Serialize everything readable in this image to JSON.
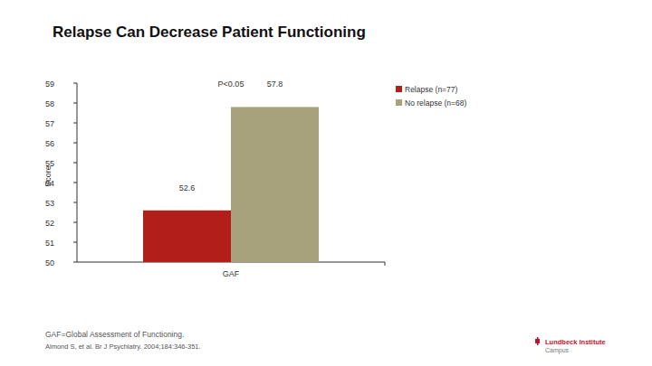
{
  "chart_data": {
    "type": "bar",
    "title": "Relapse Can Decrease Patient Functioning",
    "y_label": "Score",
    "categories": [
      "GAF"
    ],
    "series": [
      {
        "name": "Relapse (n=77)",
        "color": "#b21e1a",
        "values": [
          52.6
        ]
      },
      {
        "name": "No relapse (n=68)",
        "color": "#a8a27c",
        "values": [
          57.8
        ]
      }
    ],
    "annotations": [
      "P<0.05"
    ],
    "ylim": [
      50,
      59
    ],
    "yticks": [
      50,
      51,
      52,
      53,
      54,
      55,
      56,
      57,
      58,
      59
    ],
    "grid": false,
    "legend": "top-right",
    "data_labels": true
  },
  "footer": {
    "notes": [
      "GAF=Global Assessment of Functioning.",
      "Almond S, et al. Br J Psychiatry. 2004;184:346-351."
    ],
    "logo": [
      "Lundbeck Institute",
      "Campus"
    ]
  }
}
